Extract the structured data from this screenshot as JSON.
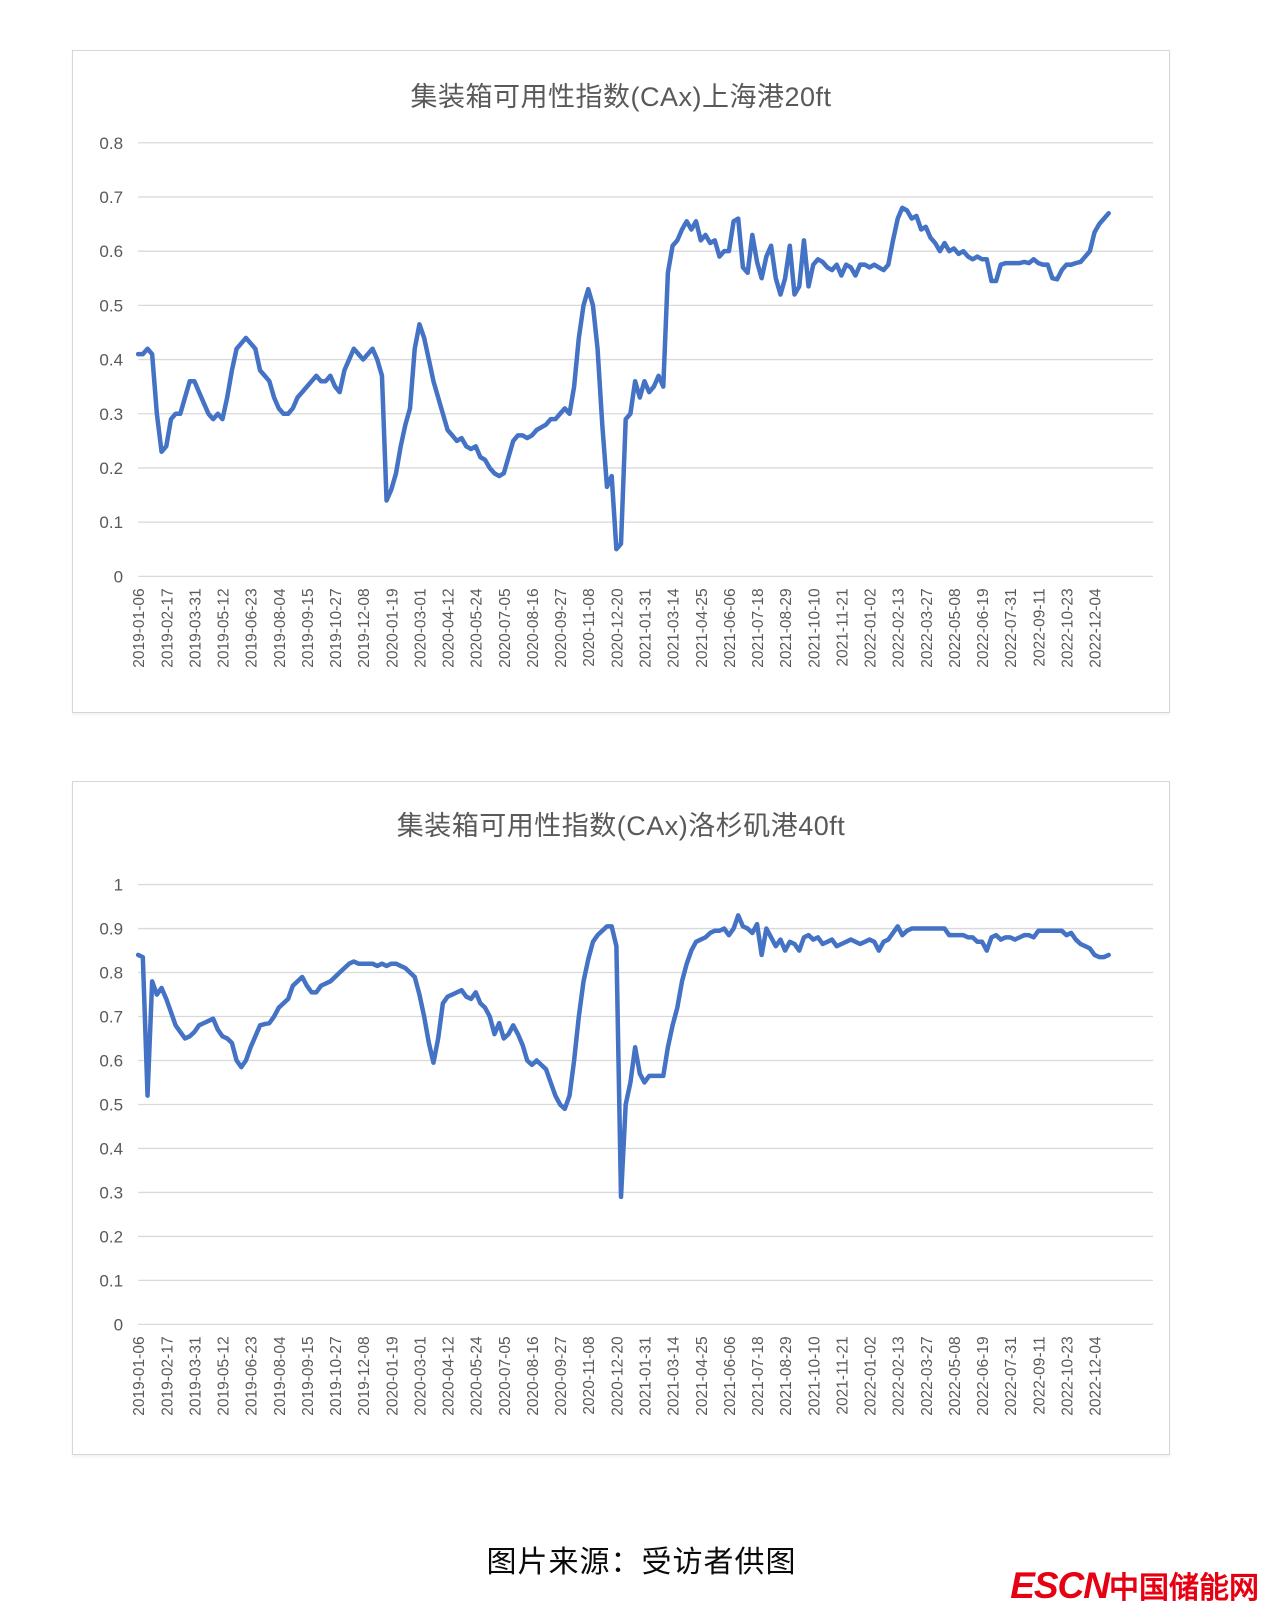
{
  "caption": "图片来源：受访者供图",
  "logo": {
    "escn": "ESCN",
    "chinese": "中国储能网",
    "color": "#e60012"
  },
  "chart_data": [
    {
      "type": "line",
      "title": "集装箱可用性指数(CAx)上海港20ft",
      "title_color": "#595959",
      "line_color": "#4472C4",
      "grid_color": "#d9d9d9",
      "tick_label_color": "#595959",
      "grid": true,
      "legend": "none",
      "x_interval": "weekly",
      "points_per_tick": 6,
      "ylim": [
        0,
        0.8
      ],
      "y_tick_labels": [
        "0",
        "0.1",
        "0.2",
        "0.3",
        "0.4",
        "0.5",
        "0.6",
        "0.7",
        "0.8"
      ],
      "x_tick_labels": [
        "2019-01-06",
        "2019-02-17",
        "2019-03-31",
        "2019-05-12",
        "2019-06-23",
        "2019-08-04",
        "2019-09-15",
        "2019-10-27",
        "2019-12-08",
        "2020-01-19",
        "2020-03-01",
        "2020-04-12",
        "2020-05-24",
        "2020-07-05",
        "2020-08-16",
        "2020-09-27",
        "2020-11-08",
        "2020-12-20",
        "2021-01-31",
        "2021-03-14",
        "2021-04-25",
        "2021-06-06",
        "2021-07-18",
        "2021-08-29",
        "2021-10-10",
        "2021-11-21",
        "2022-01-02",
        "2022-02-13",
        "2022-03-27",
        "2022-05-08",
        "2022-06-19",
        "2022-07-31",
        "2022-09-11",
        "2022-10-23",
        "2022-12-04"
      ],
      "values": [
        0.41,
        0.41,
        0.42,
        0.41,
        0.3,
        0.23,
        0.24,
        0.29,
        0.3,
        0.3,
        0.33,
        0.36,
        0.36,
        0.34,
        0.32,
        0.3,
        0.29,
        0.3,
        0.29,
        0.33,
        0.38,
        0.42,
        0.43,
        0.44,
        0.43,
        0.42,
        0.38,
        0.37,
        0.36,
        0.33,
        0.31,
        0.3,
        0.3,
        0.31,
        0.33,
        0.34,
        0.35,
        0.36,
        0.37,
        0.36,
        0.36,
        0.37,
        0.35,
        0.34,
        0.38,
        0.4,
        0.42,
        0.41,
        0.4,
        0.41,
        0.42,
        0.4,
        0.37,
        0.14,
        0.16,
        0.19,
        0.24,
        0.28,
        0.31,
        0.42,
        0.465,
        0.44,
        0.4,
        0.36,
        0.33,
        0.3,
        0.27,
        0.26,
        0.25,
        0.255,
        0.24,
        0.235,
        0.24,
        0.22,
        0.215,
        0.2,
        0.19,
        0.185,
        0.19,
        0.22,
        0.25,
        0.26,
        0.26,
        0.255,
        0.26,
        0.27,
        0.275,
        0.28,
        0.29,
        0.29,
        0.3,
        0.31,
        0.3,
        0.35,
        0.44,
        0.5,
        0.53,
        0.5,
        0.42,
        0.28,
        0.165,
        0.185,
        0.05,
        0.06,
        0.29,
        0.3,
        0.36,
        0.33,
        0.36,
        0.34,
        0.35,
        0.37,
        0.35,
        0.56,
        0.61,
        0.62,
        0.64,
        0.655,
        0.64,
        0.655,
        0.62,
        0.63,
        0.615,
        0.62,
        0.59,
        0.6,
        0.6,
        0.655,
        0.66,
        0.57,
        0.56,
        0.63,
        0.58,
        0.55,
        0.59,
        0.61,
        0.55,
        0.52,
        0.55,
        0.61,
        0.52,
        0.535,
        0.62,
        0.535,
        0.575,
        0.585,
        0.58,
        0.57,
        0.565,
        0.575,
        0.555,
        0.575,
        0.57,
        0.555,
        0.575,
        0.575,
        0.57,
        0.575,
        0.57,
        0.565,
        0.575,
        0.62,
        0.66,
        0.68,
        0.675,
        0.66,
        0.665,
        0.64,
        0.645,
        0.625,
        0.615,
        0.6,
        0.615,
        0.6,
        0.605,
        0.595,
        0.6,
        0.59,
        0.585,
        0.59,
        0.585,
        0.585,
        0.545,
        0.545,
        0.575,
        0.578,
        0.578,
        0.578,
        0.578,
        0.58,
        0.578,
        0.585,
        0.578,
        0.575,
        0.575,
        0.55,
        0.548,
        0.565,
        0.575,
        0.575,
        0.578,
        0.58,
        0.59,
        0.6,
        0.635,
        0.65,
        0.66,
        0.67
      ]
    },
    {
      "type": "line",
      "title": "集装箱可用性指数(CAx)洛杉矶港40ft",
      "title_color": "#595959",
      "line_color": "#4472C4",
      "grid_color": "#d9d9d9",
      "tick_label_color": "#595959",
      "grid": true,
      "legend": "none",
      "x_interval": "weekly",
      "points_per_tick": 6,
      "ylim": [
        0,
        1
      ],
      "y_tick_labels": [
        "0",
        "0.1",
        "0.2",
        "0.3",
        "0.4",
        "0.5",
        "0.6",
        "0.7",
        "0.8",
        "0.9",
        "1"
      ],
      "x_tick_labels": [
        "2019-01-06",
        "2019-02-17",
        "2019-03-31",
        "2019-05-12",
        "2019-06-23",
        "2019-08-04",
        "2019-09-15",
        "2019-10-27",
        "2019-12-08",
        "2020-01-19",
        "2020-03-01",
        "2020-04-12",
        "2020-05-24",
        "2020-07-05",
        "2020-08-16",
        "2020-09-27",
        "2020-11-08",
        "2020-12-20",
        "2021-01-31",
        "2021-03-14",
        "2021-04-25",
        "2021-06-06",
        "2021-07-18",
        "2021-08-29",
        "2021-10-10",
        "2021-11-21",
        "2022-01-02",
        "2022-02-13",
        "2022-03-27",
        "2022-05-08",
        "2022-06-19",
        "2022-07-31",
        "2022-09-11",
        "2022-10-23",
        "2022-12-04"
      ],
      "values": [
        0.84,
        0.835,
        0.52,
        0.78,
        0.75,
        0.765,
        0.74,
        0.71,
        0.68,
        0.665,
        0.65,
        0.655,
        0.665,
        0.68,
        0.685,
        0.69,
        0.695,
        0.67,
        0.655,
        0.65,
        0.64,
        0.6,
        0.585,
        0.6,
        0.63,
        0.655,
        0.68,
        0.683,
        0.685,
        0.7,
        0.72,
        0.73,
        0.74,
        0.77,
        0.78,
        0.79,
        0.77,
        0.755,
        0.755,
        0.77,
        0.775,
        0.78,
        0.79,
        0.8,
        0.81,
        0.82,
        0.825,
        0.82,
        0.82,
        0.82,
        0.82,
        0.815,
        0.82,
        0.815,
        0.82,
        0.82,
        0.815,
        0.81,
        0.8,
        0.79,
        0.75,
        0.7,
        0.64,
        0.595,
        0.65,
        0.73,
        0.745,
        0.75,
        0.755,
        0.76,
        0.745,
        0.74,
        0.755,
        0.73,
        0.72,
        0.7,
        0.66,
        0.685,
        0.65,
        0.66,
        0.68,
        0.66,
        0.635,
        0.6,
        0.59,
        0.6,
        0.59,
        0.58,
        0.55,
        0.52,
        0.5,
        0.49,
        0.52,
        0.6,
        0.7,
        0.78,
        0.83,
        0.87,
        0.885,
        0.895,
        0.905,
        0.905,
        0.86,
        0.29,
        0.5,
        0.55,
        0.63,
        0.57,
        0.55,
        0.565,
        0.565,
        0.565,
        0.565,
        0.63,
        0.68,
        0.72,
        0.78,
        0.82,
        0.85,
        0.87,
        0.875,
        0.88,
        0.89,
        0.895,
        0.895,
        0.9,
        0.885,
        0.9,
        0.93,
        0.905,
        0.9,
        0.89,
        0.91,
        0.84,
        0.9,
        0.88,
        0.86,
        0.875,
        0.85,
        0.87,
        0.865,
        0.85,
        0.88,
        0.885,
        0.875,
        0.88,
        0.865,
        0.87,
        0.875,
        0.86,
        0.865,
        0.87,
        0.875,
        0.87,
        0.865,
        0.87,
        0.875,
        0.87,
        0.85,
        0.87,
        0.875,
        0.89,
        0.905,
        0.885,
        0.895,
        0.9,
        0.9,
        0.9,
        0.9,
        0.9,
        0.9,
        0.9,
        0.9,
        0.885,
        0.885,
        0.885,
        0.885,
        0.88,
        0.88,
        0.87,
        0.87,
        0.85,
        0.88,
        0.885,
        0.875,
        0.88,
        0.88,
        0.875,
        0.88,
        0.885,
        0.885,
        0.88,
        0.895,
        0.895,
        0.895,
        0.895,
        0.895,
        0.895,
        0.885,
        0.89,
        0.875,
        0.865,
        0.86,
        0.855,
        0.84,
        0.835,
        0.835,
        0.84
      ]
    }
  ]
}
